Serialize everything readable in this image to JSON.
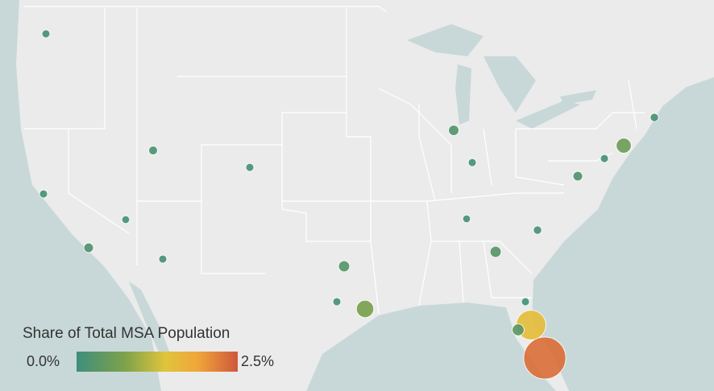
{
  "legend": {
    "title": "Share of Total MSA Population",
    "min": {
      "value": 0,
      "label": "0.0%"
    },
    "max": {
      "value": 2.5,
      "label": "2.5%"
    }
  },
  "bubbles": {
    "values": [
      0.1,
      0.1,
      0.2,
      0.08,
      0.1,
      0.15,
      0.1,
      0.3,
      0.1,
      0.7,
      0.25,
      0.1,
      0.08,
      0.3,
      0.12,
      0.2,
      0.1,
      0.55,
      0.12,
      0.1,
      1.5,
      0.35,
      2.3
    ]
  }
}
